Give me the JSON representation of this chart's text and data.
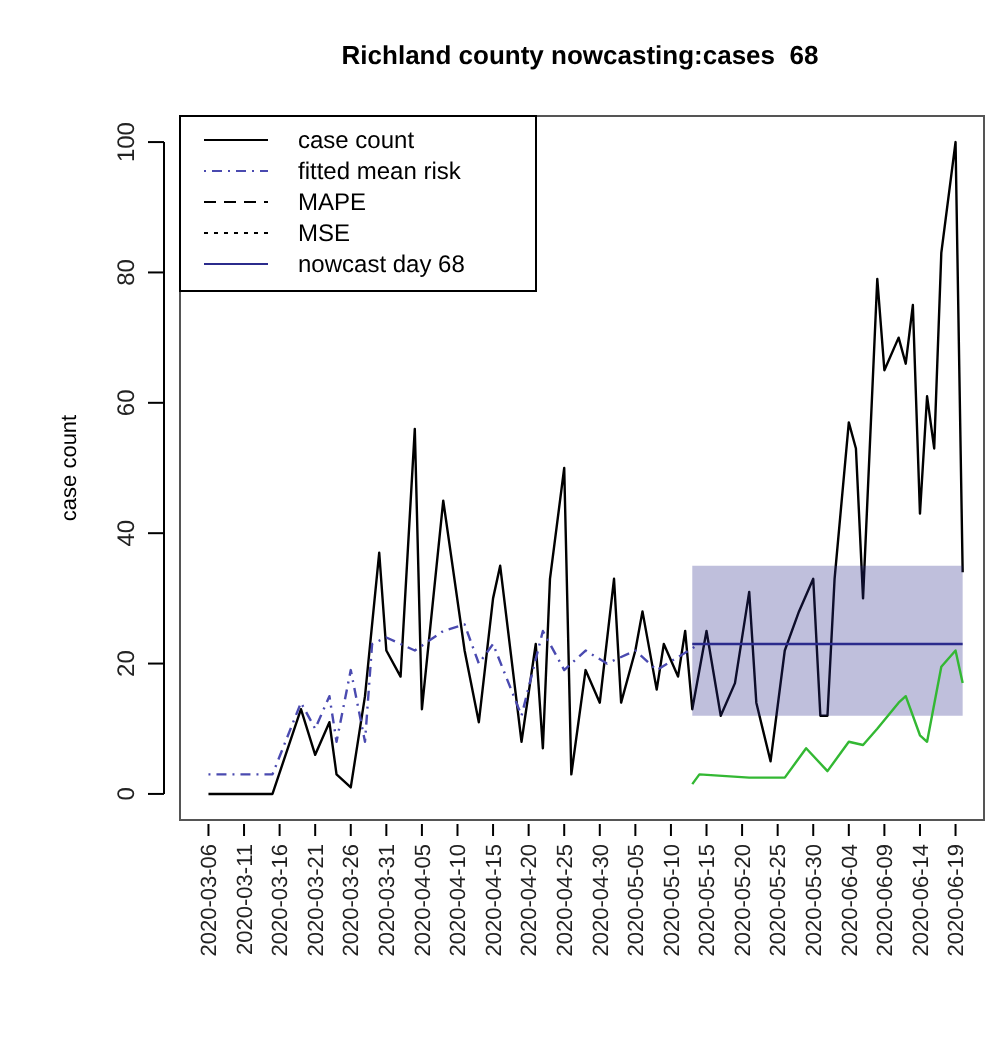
{
  "chart_data": {
    "type": "line",
    "title": "Richland county nowcasting:cases  68",
    "ylabel": "case count",
    "xlim": [
      "2020-03-02",
      "2020-06-23"
    ],
    "xticks": [
      "2020-03-06",
      "2020-03-11",
      "2020-03-16",
      "2020-03-21",
      "2020-03-26",
      "2020-03-31",
      "2020-04-05",
      "2020-04-10",
      "2020-04-15",
      "2020-04-20",
      "2020-04-25",
      "2020-04-30",
      "2020-05-05",
      "2020-05-10",
      "2020-05-15",
      "2020-05-20",
      "2020-05-25",
      "2020-05-30",
      "2020-06-04",
      "2020-06-09",
      "2020-06-14",
      "2020-06-19"
    ],
    "ylim": [
      -4,
      104
    ],
    "yticks": [
      0,
      20,
      40,
      60,
      80,
      100
    ],
    "legend": "top left",
    "grid": false,
    "series": [
      {
        "name": "case count",
        "color": "#000000",
        "line_style": "solid",
        "x": [
          "2020-03-06",
          "2020-03-15",
          "2020-03-19",
          "2020-03-21",
          "2020-03-23",
          "2020-03-24",
          "2020-03-26",
          "2020-03-28",
          "2020-03-30",
          "2020-03-31",
          "2020-04-02",
          "2020-04-04",
          "2020-04-05",
          "2020-04-08",
          "2020-04-11",
          "2020-04-13",
          "2020-04-15",
          "2020-04-16",
          "2020-04-19",
          "2020-04-21",
          "2020-04-22",
          "2020-04-23",
          "2020-04-25",
          "2020-04-26",
          "2020-04-28",
          "2020-04-30",
          "2020-05-02",
          "2020-05-03",
          "2020-05-05",
          "2020-05-06",
          "2020-05-08",
          "2020-05-09",
          "2020-05-11",
          "2020-05-12",
          "2020-05-13",
          "2020-05-15",
          "2020-05-17",
          "2020-05-19",
          "2020-05-21",
          "2020-05-22",
          "2020-05-24",
          "2020-05-26",
          "2020-05-28",
          "2020-05-30",
          "2020-05-31",
          "2020-06-01",
          "2020-06-02",
          "2020-06-04",
          "2020-06-05",
          "2020-06-06",
          "2020-06-08",
          "2020-06-09",
          "2020-06-11",
          "2020-06-12",
          "2020-06-13",
          "2020-06-14",
          "2020-06-15",
          "2020-06-16",
          "2020-06-17",
          "2020-06-19",
          "2020-06-20"
        ],
        "values": [
          0,
          0,
          13,
          6,
          11,
          3,
          1,
          15,
          37,
          22,
          18,
          56,
          13,
          45,
          22,
          11,
          30,
          35,
          8,
          23,
          7,
          33,
          50,
          3,
          19,
          14,
          33,
          14,
          22,
          28,
          16,
          23,
          18,
          25,
          13,
          25,
          12,
          17,
          31,
          14,
          5,
          22,
          28,
          33,
          12,
          12,
          33,
          57,
          53,
          30,
          79,
          65,
          70,
          66,
          75,
          43,
          61,
          53,
          83,
          100,
          34
        ]
      },
      {
        "name": "fitted mean risk",
        "color": "#4a4ab0",
        "line_style": "dotdash",
        "x": [
          "2020-03-06",
          "2020-03-15",
          "2020-03-19",
          "2020-03-21",
          "2020-03-23",
          "2020-03-24",
          "2020-03-26",
          "2020-03-28",
          "2020-03-29",
          "2020-03-31",
          "2020-04-04",
          "2020-04-08",
          "2020-04-11",
          "2020-04-13",
          "2020-04-15",
          "2020-04-19",
          "2020-04-22",
          "2020-04-25",
          "2020-04-28",
          "2020-05-01",
          "2020-05-05",
          "2020-05-08",
          "2020-05-11",
          "2020-05-14"
        ],
        "values": [
          3,
          3,
          14,
          10,
          15,
          8,
          19,
          8,
          23,
          24,
          22,
          25,
          26,
          20,
          23,
          12,
          25,
          19,
          22,
          20,
          22,
          19,
          21,
          23
        ]
      },
      {
        "name": "MAPE",
        "color": "#000000",
        "line_style": "dashed"
      },
      {
        "name": "MSE",
        "color": "#000000",
        "line_style": "dotted"
      },
      {
        "name": "nowcast day 68",
        "color": "#2b2b8c",
        "line_style": "solid",
        "x": [
          "2020-05-13",
          "2020-06-20"
        ],
        "values": [
          23,
          23
        ],
        "lower": [
          12,
          12
        ],
        "upper": [
          35,
          35
        ]
      },
      {
        "color": "#33b833",
        "line_style": "solid",
        "x": [
          "2020-05-13",
          "2020-05-14",
          "2020-05-21",
          "2020-05-26",
          "2020-05-29",
          "2020-06-01",
          "2020-06-04",
          "2020-06-06",
          "2020-06-08",
          "2020-06-11",
          "2020-06-12",
          "2020-06-14",
          "2020-06-15",
          "2020-06-17",
          "2020-06-19",
          "2020-06-20"
        ],
        "values": [
          1.5,
          3,
          2.5,
          2.5,
          7,
          3.5,
          8,
          7.5,
          10,
          14,
          15,
          9,
          8,
          19.5,
          22,
          17
        ]
      }
    ]
  }
}
